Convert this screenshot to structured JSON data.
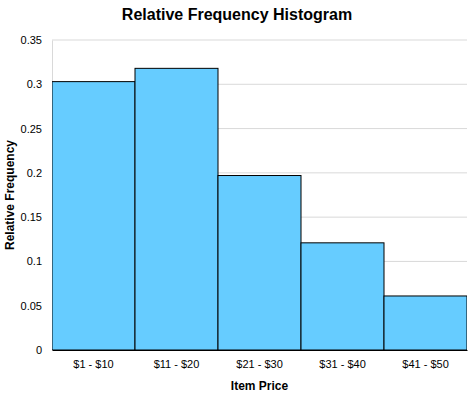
{
  "chart_data": {
    "type": "bar",
    "title": "Relative Frequency Histogram",
    "x_label": "Item Price",
    "y_label": "Relative Frequency",
    "categories": [
      "$1 - $10",
      "$11 - $20",
      "$21 - $30",
      "$31 - $40",
      "$41 - $50"
    ],
    "values": [
      0.303,
      0.318,
      0.197,
      0.121,
      0.061
    ],
    "color": "#66ccff",
    "ylim": [
      0,
      0.35
    ],
    "yticks": [
      0,
      0.05,
      0.1,
      0.15,
      0.2,
      0.25,
      0.3,
      0.35
    ],
    "grid": true
  }
}
